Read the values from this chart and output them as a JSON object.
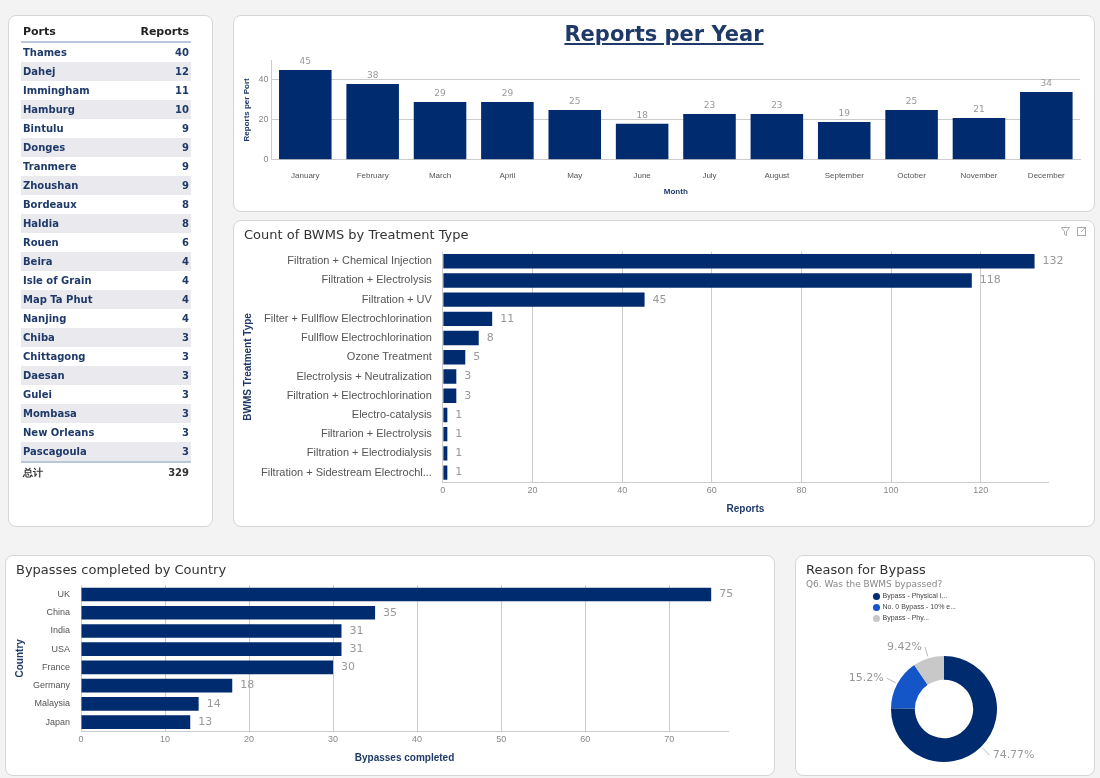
{
  "chart_data": [
    {
      "type": "other",
      "xlabel": "Ports",
      "ylabel": "Reports",
      "categories": [
        "Thames",
        "Dahej",
        "Immingham",
        "Hamburg",
        "Bintulu",
        "Donges",
        "Tranmere",
        "Zhoushan",
        "Bordeaux",
        "Haldia",
        "Rouen",
        "Beira",
        "Isle of Grain",
        "Map Ta Phut",
        "Nanjing",
        "Chiba",
        "Chittagong",
        "Daesan",
        "Gulei",
        "Mombasa",
        "New Orleans",
        "Pascagoula"
      ],
      "values": [
        40,
        12,
        11,
        10,
        9,
        9,
        9,
        9,
        8,
        8,
        6,
        4,
        4,
        4,
        4,
        3,
        3,
        3,
        3,
        3,
        3,
        3
      ],
      "data_labels": true,
      "annotations": [
        "总计",
        "329"
      ]
    },
    {
      "type": "bar",
      "title": "Reports per Year",
      "xlabel": "Month",
      "ylabel": "Reports per Port",
      "categories": [
        "January",
        "February",
        "March",
        "April",
        "May",
        "June",
        "July",
        "August",
        "September",
        "October",
        "November",
        "December"
      ],
      "values": [
        45,
        38,
        29,
        29,
        25,
        18,
        23,
        23,
        19,
        25,
        21,
        34
      ],
      "color": "#002b6e",
      "ylim": [
        0,
        50
      ],
      "yticks": [
        0,
        20,
        40
      ],
      "grid": "y",
      "data_labels": true
    },
    {
      "type": "bar",
      "orientation": "horizontal",
      "title": "Count of BWMS by Treatment Type",
      "xlabel": "Reports",
      "ylabel": "BWMS Treatment Type",
      "categories": [
        "Filtration + Chemical Injection",
        "Filtration + Electrolysis",
        "Filtration + UV",
        "Filter + Fullflow Electrochlorination",
        "Fullflow Electrochlorination",
        "Ozone Treatment",
        "Electrolysis + Neutralization",
        "Filtration + Electrochlorination",
        "Electro-catalysis",
        "Filtrarion + Electrolysis",
        "Filtration + Electrodialysis",
        "Filtration + Sidestream Electrochl..."
      ],
      "values": [
        132,
        118,
        45,
        11,
        8,
        5,
        3,
        3,
        1,
        1,
        1,
        1
      ],
      "color": "#002b6e",
      "xlim": [
        0,
        135
      ],
      "xticks": [
        0,
        20,
        40,
        60,
        80,
        100,
        120
      ],
      "grid": "x",
      "data_labels": true
    },
    {
      "type": "bar",
      "orientation": "horizontal",
      "title": "Bypasses completed by Country",
      "xlabel": "Bypasses completed",
      "ylabel": "Country",
      "categories": [
        "UK",
        "China",
        "India",
        "USA",
        "France",
        "Germany",
        "Malaysia",
        "Japan"
      ],
      "values": [
        75,
        35,
        31,
        31,
        30,
        18,
        14,
        13
      ],
      "color": "#002b6e",
      "xlim": [
        0,
        77
      ],
      "xticks": [
        0,
        10,
        20,
        30,
        40,
        50,
        60,
        70
      ],
      "grid": "x",
      "data_labels": true
    },
    {
      "type": "donut",
      "title": "Reason for Bypass",
      "subtitle": "Q6. Was the BWMS bypassed?",
      "categories": [
        "Bypass - Physical i...",
        "No. 0 Bypass - 10% e...",
        "Bypass - Phy..."
      ],
      "values": [
        74.77,
        15.2,
        9.42
      ],
      "colors": [
        "#002b6e",
        "#1456c8",
        "#c8c8c8"
      ],
      "value_labels": [
        "74.77%",
        "15.2%",
        "9.42%"
      ],
      "legend": "top left"
    }
  ]
}
